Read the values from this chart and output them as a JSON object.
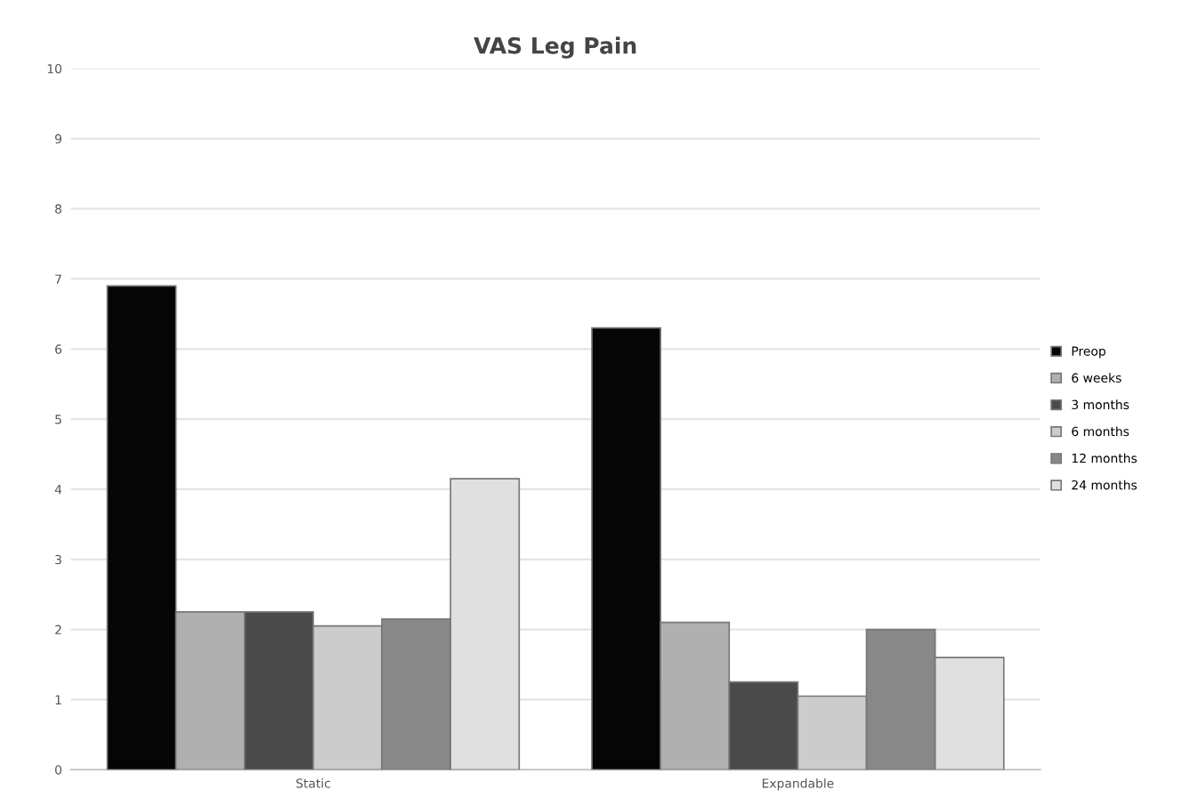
{
  "chart_data": {
    "type": "bar",
    "title": "VAS Leg Pain",
    "categories": [
      "Static",
      "Expandable"
    ],
    "series": [
      {
        "name": "Preop",
        "color": "#050505",
        "values": [
          6.9,
          6.3
        ]
      },
      {
        "name": "6 weeks",
        "color": "#b0b0b0",
        "values": [
          2.25,
          2.1
        ]
      },
      {
        "name": "3 months",
        "color": "#4a4a4a",
        "values": [
          2.25,
          1.25
        ]
      },
      {
        "name": "6 months",
        "color": "#cccccc",
        "values": [
          2.05,
          1.05
        ]
      },
      {
        "name": "12 months",
        "color": "#888888",
        "values": [
          2.15,
          2.0
        ]
      },
      {
        "name": "24 months",
        "color": "#e0e0e0",
        "values": [
          4.15,
          1.6
        ]
      }
    ],
    "ylim": [
      0,
      10
    ],
    "yticks": [
      0,
      1,
      2,
      3,
      4,
      5,
      6,
      7,
      8,
      9,
      10
    ],
    "grid": "y",
    "legend": "right"
  }
}
